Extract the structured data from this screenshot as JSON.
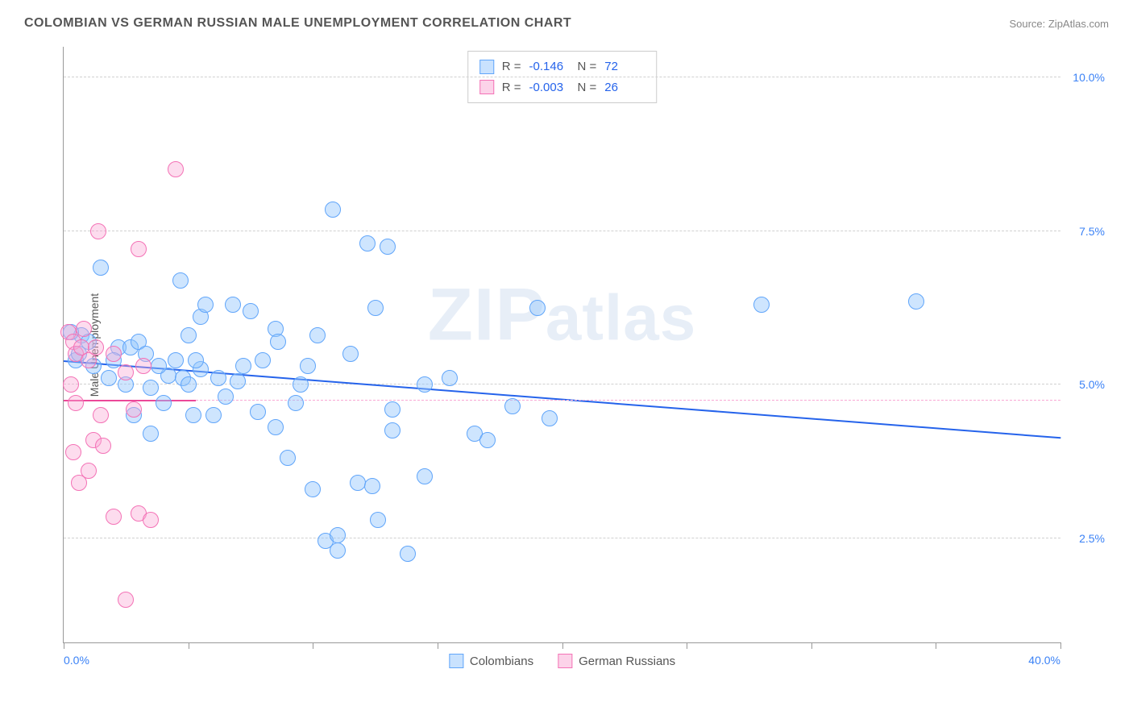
{
  "title": "COLOMBIAN VS GERMAN RUSSIAN MALE UNEMPLOYMENT CORRELATION CHART",
  "source": "Source: ZipAtlas.com",
  "watermark": "ZIPatlas",
  "chart": {
    "type": "scatter",
    "y_axis_title": "Male Unemployment",
    "xlim": [
      0,
      40
    ],
    "ylim": [
      0.8,
      10.5
    ],
    "x_axis_left_label": "0.0%",
    "x_axis_right_label": "40.0%",
    "y_ticks": [
      {
        "v": 2.5,
        "label": "2.5%"
      },
      {
        "v": 5.0,
        "label": "5.0%"
      },
      {
        "v": 7.5,
        "label": "7.5%"
      },
      {
        "v": 10.0,
        "label": "10.0%"
      }
    ],
    "x_tick_positions": [
      0,
      5,
      10,
      15,
      20,
      25,
      30,
      35,
      40
    ],
    "grid_color": "#d0d0d0",
    "marker_radius": 10,
    "series": [
      {
        "name": "Colombians",
        "color_fill": "rgba(147,197,253,0.45)",
        "color_stroke": "#60a5fa",
        "class": "point-blue",
        "R": "-0.146",
        "N": "72",
        "trend": {
          "y_start": 5.4,
          "y_end": 4.15,
          "x_start": 0,
          "x_end": 40,
          "color": "#2563eb"
        },
        "points": [
          [
            1.5,
            6.9
          ],
          [
            4.7,
            6.7
          ],
          [
            0.7,
            5.8
          ],
          [
            1.0,
            5.7
          ],
          [
            2.2,
            5.6
          ],
          [
            2.7,
            5.6
          ],
          [
            2.0,
            5.4
          ],
          [
            3.0,
            5.7
          ],
          [
            3.3,
            5.5
          ],
          [
            4.5,
            5.4
          ],
          [
            5.0,
            5.8
          ],
          [
            5.5,
            6.1
          ],
          [
            5.7,
            6.3
          ],
          [
            6.8,
            6.3
          ],
          [
            7.5,
            6.2
          ],
          [
            8.5,
            5.9
          ],
          [
            8.0,
            5.4
          ],
          [
            4.0,
            4.7
          ],
          [
            4.2,
            5.15
          ],
          [
            5.2,
            4.5
          ],
          [
            6.0,
            4.5
          ],
          [
            7.0,
            5.05
          ],
          [
            7.2,
            5.3
          ],
          [
            9.5,
            5.0
          ],
          [
            9.8,
            5.3
          ],
          [
            10.8,
            7.85
          ],
          [
            12.2,
            7.3
          ],
          [
            13.0,
            7.25
          ],
          [
            11.5,
            5.5
          ],
          [
            12.5,
            6.25
          ],
          [
            14.5,
            5.0
          ],
          [
            15.5,
            5.1
          ],
          [
            16.5,
            4.2
          ],
          [
            17.0,
            4.1
          ],
          [
            18.0,
            4.65
          ],
          [
            19.0,
            6.25
          ],
          [
            19.5,
            4.45
          ],
          [
            28.0,
            6.3
          ],
          [
            34.2,
            6.35
          ],
          [
            7.8,
            4.55
          ],
          [
            8.5,
            4.3
          ],
          [
            9.0,
            3.8
          ],
          [
            10.0,
            3.3
          ],
          [
            10.5,
            2.45
          ],
          [
            11.0,
            2.3
          ],
          [
            11.8,
            3.4
          ],
          [
            12.4,
            3.35
          ],
          [
            12.6,
            2.8
          ],
          [
            13.2,
            4.6
          ],
          [
            13.8,
            2.25
          ],
          [
            14.5,
            3.5
          ],
          [
            1.8,
            5.1
          ],
          [
            2.5,
            5.0
          ],
          [
            3.5,
            4.95
          ],
          [
            4.8,
            5.1
          ],
          [
            3.8,
            5.3
          ],
          [
            0.5,
            5.4
          ],
          [
            1.2,
            5.3
          ],
          [
            6.2,
            5.1
          ],
          [
            6.5,
            4.8
          ],
          [
            5.0,
            5.0
          ],
          [
            5.5,
            5.25
          ],
          [
            2.8,
            4.5
          ],
          [
            3.5,
            4.2
          ],
          [
            0.3,
            5.85
          ],
          [
            0.6,
            5.5
          ],
          [
            8.6,
            5.7
          ],
          [
            10.2,
            5.8
          ],
          [
            9.3,
            4.7
          ],
          [
            11.0,
            2.55
          ],
          [
            13.2,
            4.25
          ],
          [
            5.3,
            5.4
          ]
        ]
      },
      {
        "name": "German Russians",
        "color_fill": "rgba(249,168,212,0.4)",
        "color_stroke": "#f472b6",
        "class": "point-pink",
        "R": "-0.003",
        "N": "26",
        "trend_solid": {
          "y": 4.75,
          "x_start": 0,
          "x_end": 5.3,
          "color": "#ec4899"
        },
        "trend_dash": {
          "y": 4.75,
          "x_start": 5.3,
          "x_end": 40,
          "color": "#f9a8d4"
        },
        "points": [
          [
            4.5,
            8.5
          ],
          [
            1.4,
            7.5
          ],
          [
            3.0,
            7.2
          ],
          [
            0.2,
            5.85
          ],
          [
            0.4,
            5.7
          ],
          [
            0.5,
            5.5
          ],
          [
            0.7,
            5.6
          ],
          [
            1.0,
            5.4
          ],
          [
            1.3,
            5.6
          ],
          [
            2.0,
            5.5
          ],
          [
            2.5,
            5.2
          ],
          [
            3.2,
            5.3
          ],
          [
            0.3,
            5.0
          ],
          [
            0.5,
            4.7
          ],
          [
            1.2,
            4.1
          ],
          [
            1.6,
            4.0
          ],
          [
            0.4,
            3.9
          ],
          [
            1.0,
            3.6
          ],
          [
            0.6,
            3.4
          ],
          [
            2.0,
            2.85
          ],
          [
            3.0,
            2.9
          ],
          [
            3.5,
            2.8
          ],
          [
            2.5,
            1.5
          ],
          [
            0.8,
            5.9
          ],
          [
            1.5,
            4.5
          ],
          [
            2.8,
            4.6
          ]
        ]
      }
    ],
    "stats_legend": [
      {
        "swatch": "swatch-blue",
        "R": "-0.146",
        "N": "72"
      },
      {
        "swatch": "swatch-pink",
        "R": "-0.003",
        "N": "26"
      }
    ],
    "bottom_legend": [
      {
        "swatch": "swatch-blue",
        "label": "Colombians"
      },
      {
        "swatch": "swatch-pink",
        "label": "German Russians"
      }
    ]
  }
}
